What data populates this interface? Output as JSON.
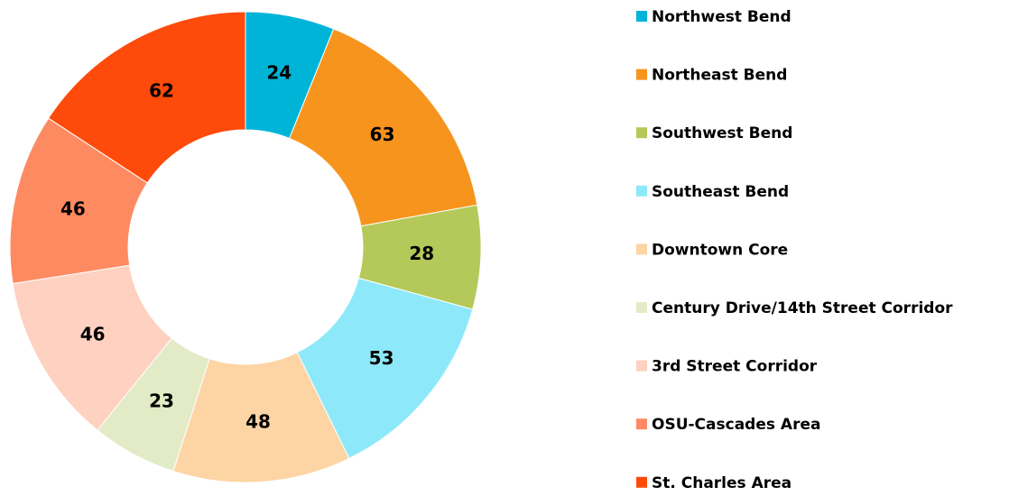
{
  "chart_data": {
    "type": "donut",
    "categories": [
      "Northwest Bend",
      "Northeast Bend",
      "Southwest Bend",
      "Southeast Bend",
      "Downtown Core",
      "Century Drive/14th Street Corridor",
      "3rd Street Corridor",
      "OSU-Cascades Area",
      "St. Charles Area"
    ],
    "values": [
      24,
      63,
      28,
      53,
      48,
      23,
      46,
      46,
      62
    ],
    "colors": [
      "#00b4d8",
      "#f7941d",
      "#b5c95a",
      "#8de9f9",
      "#fdd4a4",
      "#e2ebc5",
      "#fed1c1",
      "#fe8a62",
      "#fe4a0a"
    ],
    "legend": "right"
  }
}
